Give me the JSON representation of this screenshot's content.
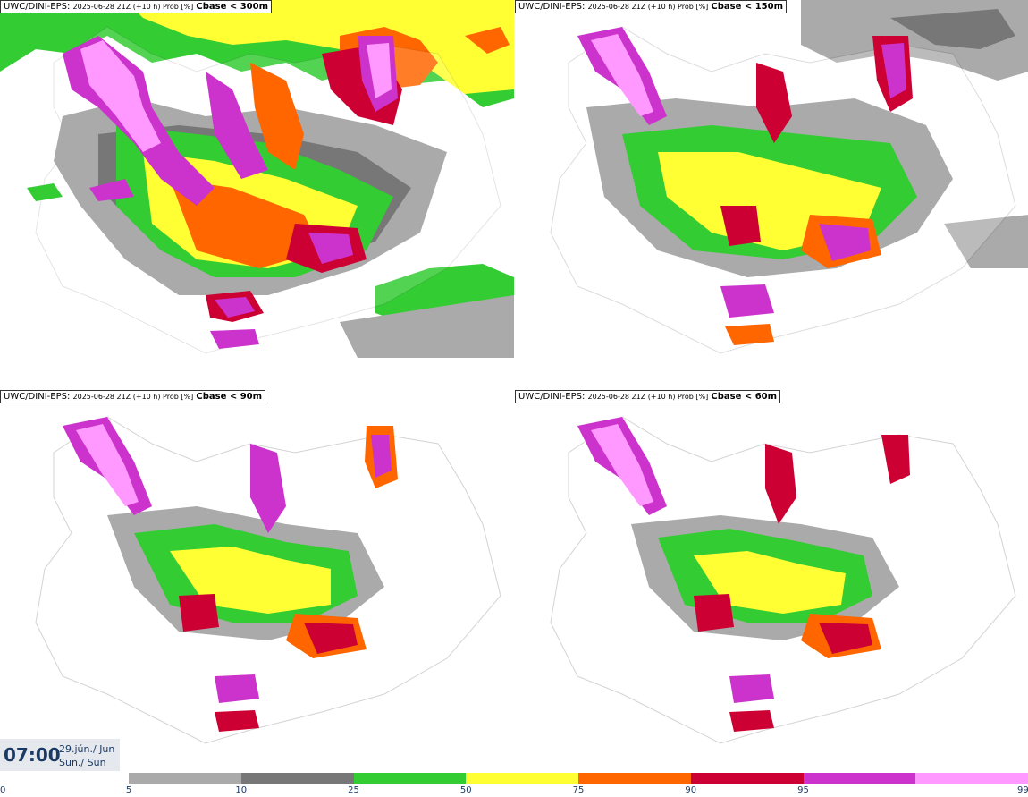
{
  "panels": [
    {
      "source": "UWC/DINI-EPS",
      "meta": "2025-06-28 21Z (+10 h) Prob [%]",
      "threshold": "Cbase < 300m"
    },
    {
      "source": "UWC/DINI-EPS",
      "meta": "2025-06-28 21Z (+10 h) Prob [%]",
      "threshold": "Cbase < 150m"
    },
    {
      "source": "UWC/DINI-EPS",
      "meta": "2025-06-28 21Z (+10 h) Prob [%]",
      "threshold": "Cbase < 90m"
    },
    {
      "source": "UWC/DINI-EPS",
      "meta": "2025-06-28 21Z (+10 h) Prob [%]",
      "threshold": "Cbase < 60m"
    }
  ],
  "time": {
    "clock": "07:00",
    "date_line1": "29.jún./ Jun",
    "date_line2": "Sun./ Sun"
  },
  "legend": {
    "ticks": [
      "0",
      "5",
      "10",
      "25",
      "50",
      "75",
      "90",
      "95",
      "99"
    ],
    "colors": [
      "#aaaaaa",
      "#777777",
      "#33cc33",
      "#ffff33",
      "#ff6600",
      "#cc0033",
      "#cc33cc",
      "#ff99ff"
    ]
  },
  "panel_colors": {
    "land": "#ffffff",
    "coast": "#555555",
    "gray_light": "#aaaaaa",
    "gray_dark": "#777777"
  }
}
